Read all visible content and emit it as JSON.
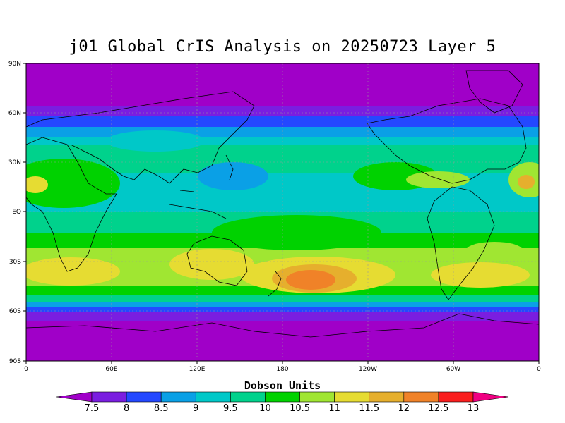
{
  "title": "j01 Global CrIS Analysis on 20250723 Layer 5",
  "colorbar_title": "Dobson Units",
  "lat_ticks": [
    "90N",
    "60N",
    "30N",
    "EQ",
    "30S",
    "60S",
    "90S"
  ],
  "lon_ticks": [
    "0",
    "60E",
    "120E",
    "180",
    "120W",
    "60W",
    "0"
  ],
  "colorbar_labels": [
    "7.5",
    "8",
    "8.5",
    "9",
    "9.5",
    "10",
    "10.5",
    "11",
    "11.5",
    "12",
    "12.5",
    "13"
  ],
  "colorbar_colors": [
    "#a000c8",
    "#7a1ee0",
    "#2448ff",
    "#0aa0e6",
    "#00c8c8",
    "#00d28c",
    "#00d200",
    "#a0e632",
    "#e6dc32",
    "#e6af2d",
    "#f08228",
    "#fa1e1e",
    "#f00082"
  ],
  "chart_data": {
    "type": "heatmap",
    "variable": "Dobson Units",
    "date": "20250723",
    "layer": "5",
    "lon_range": [
      0,
      360
    ],
    "lat_range": [
      -90,
      90
    ],
    "grid": true,
    "color_levels": [
      7.5,
      8,
      8.5,
      9,
      9.5,
      10,
      10.5,
      11,
      11.5,
      12,
      12.5,
      13
    ],
    "features": [
      {
        "region": "polar caps (>65N, >65S)",
        "value": "<7.5"
      },
      {
        "region": "southern mid-latitudes around 180",
        "value": "12-12.5"
      },
      {
        "region": "tropics / west Pacific",
        "value": "9-10"
      }
    ]
  }
}
